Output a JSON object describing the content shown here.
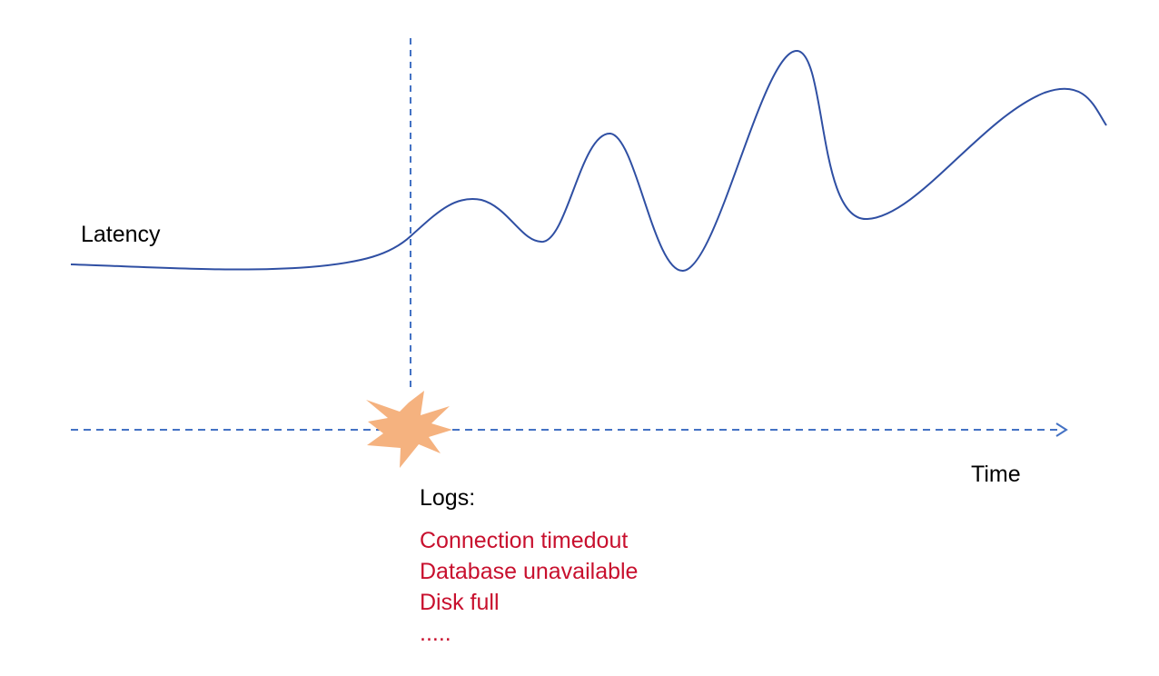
{
  "labels": {
    "latency": "Latency",
    "time": "Time",
    "logs_title": "Logs:"
  },
  "logs": [
    "Connection timedout",
    "Database unavailable",
    "Disk full",
    "....."
  ],
  "colors": {
    "curve": "#2f4fa3",
    "axis": "#4472c4",
    "event_burst": "#f5b27f",
    "logs_text": "#c8102e"
  },
  "icons": {
    "event_marker": "starburst-icon"
  }
}
